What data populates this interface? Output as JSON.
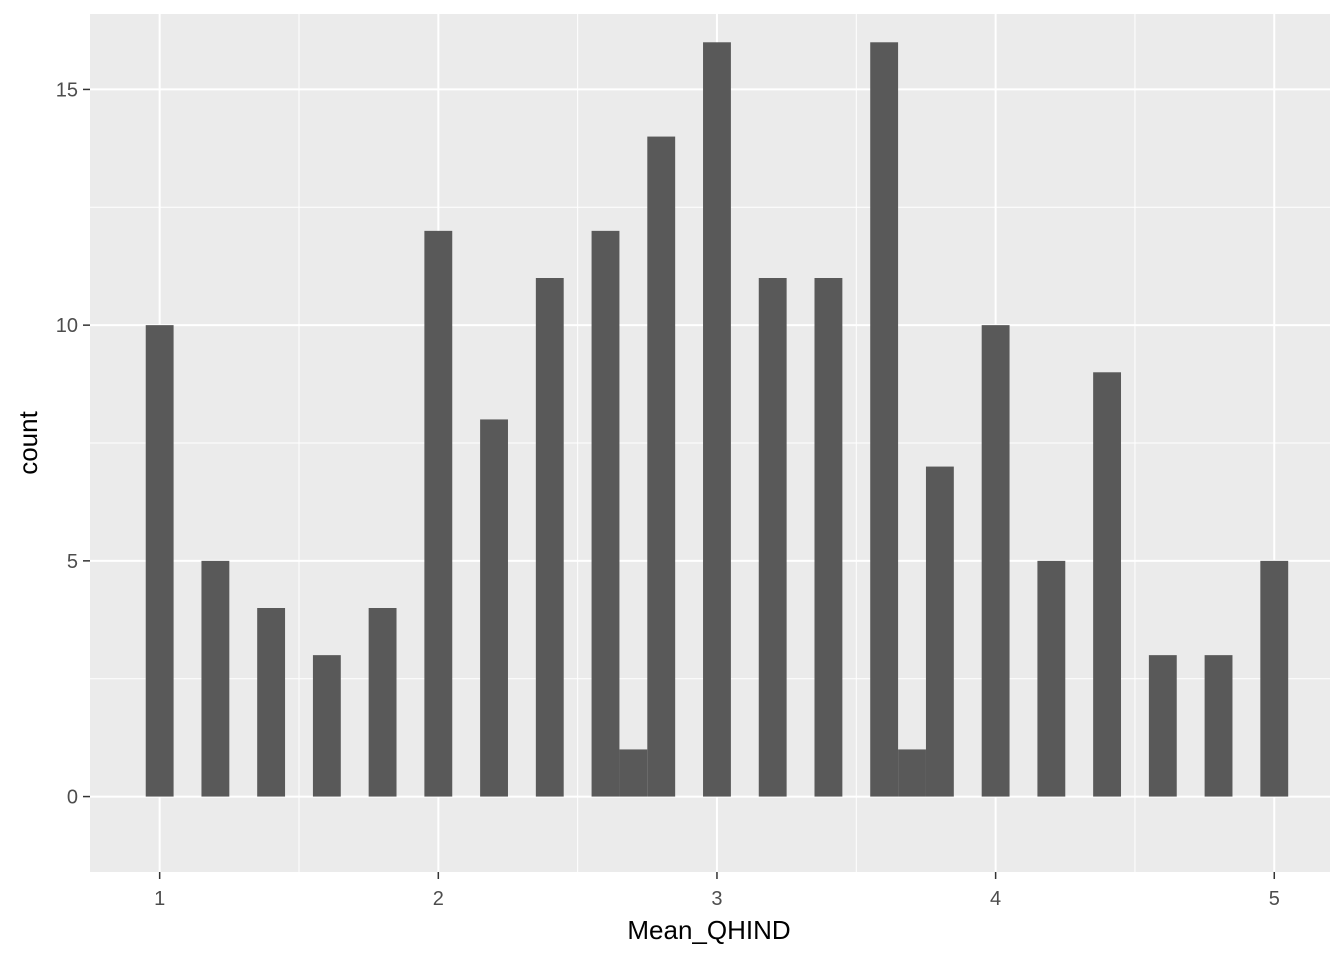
{
  "chart_data": {
    "type": "bar",
    "xlabel": "Mean_QHIND",
    "ylabel": "count",
    "xlim": [
      0.75,
      5.2
    ],
    "ylim": [
      -1.6,
      16.6
    ],
    "x_ticks": [
      1,
      2,
      3,
      4,
      5
    ],
    "y_ticks": [
      0,
      5,
      10,
      15
    ],
    "bin_width": 0.1,
    "bars": [
      {
        "x": 1.0,
        "count": 10
      },
      {
        "x": 1.2,
        "count": 5
      },
      {
        "x": 1.4,
        "count": 4
      },
      {
        "x": 1.6,
        "count": 3
      },
      {
        "x": 1.8,
        "count": 4
      },
      {
        "x": 2.0,
        "count": 12
      },
      {
        "x": 2.2,
        "count": 8
      },
      {
        "x": 2.4,
        "count": 11
      },
      {
        "x": 2.6,
        "count": 12
      },
      {
        "x": 2.7,
        "count": 1
      },
      {
        "x": 2.8,
        "count": 14
      },
      {
        "x": 3.0,
        "count": 16
      },
      {
        "x": 3.2,
        "count": 11
      },
      {
        "x": 3.4,
        "count": 11
      },
      {
        "x": 3.6,
        "count": 16
      },
      {
        "x": 3.7,
        "count": 1
      },
      {
        "x": 3.8,
        "count": 7
      },
      {
        "x": 4.0,
        "count": 10
      },
      {
        "x": 4.2,
        "count": 5
      },
      {
        "x": 4.4,
        "count": 9
      },
      {
        "x": 4.6,
        "count": 3
      },
      {
        "x": 4.8,
        "count": 3
      },
      {
        "x": 5.0,
        "count": 5
      }
    ],
    "colors": {
      "panel": "#ebebeb",
      "grid": "#ffffff",
      "bar": "#595959",
      "tick_text": "#4d4d4d",
      "tick_mark": "#333333"
    },
    "grid": true
  }
}
